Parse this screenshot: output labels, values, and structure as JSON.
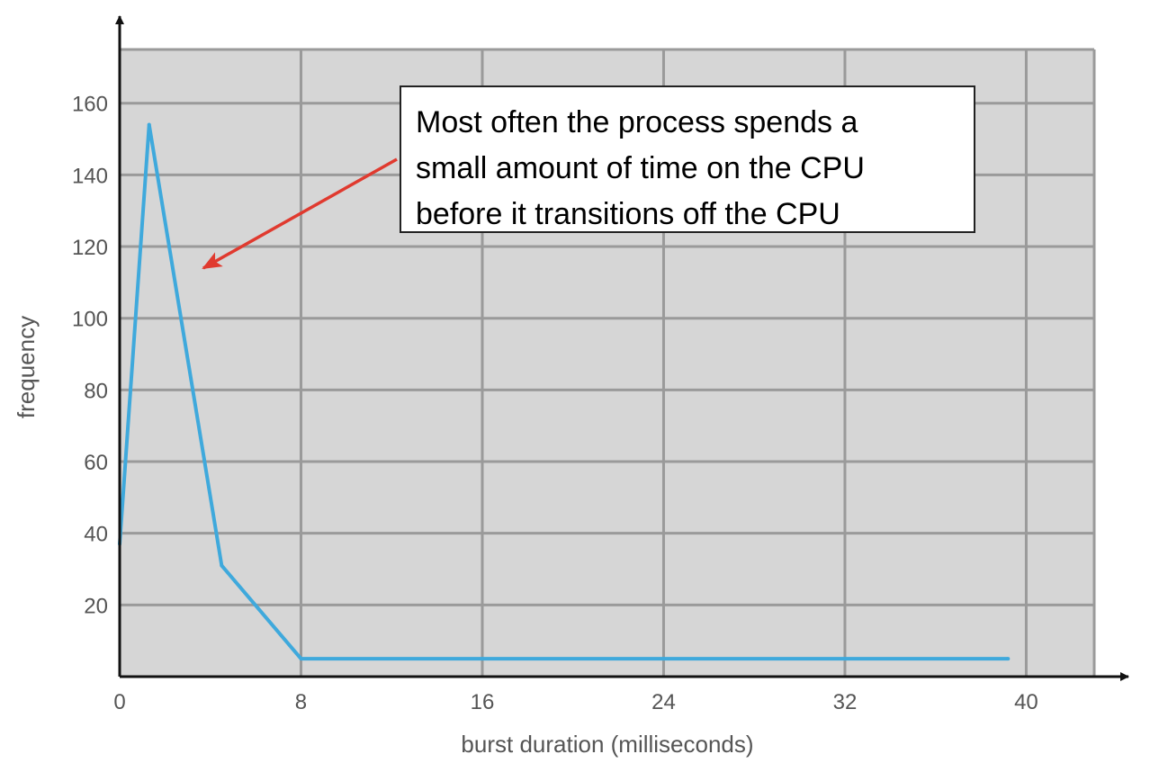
{
  "chart_data": {
    "type": "line",
    "title": "",
    "xlabel": "burst duration (milliseconds)",
    "ylabel": "frequency",
    "xlim": [
      0,
      43
    ],
    "ylim": [
      0,
      175
    ],
    "x_ticks": [
      0,
      8,
      16,
      24,
      32,
      40
    ],
    "y_ticks": [
      20,
      40,
      60,
      80,
      100,
      120,
      140,
      160
    ],
    "grid": true,
    "series": [
      {
        "color": "#3fa9dc",
        "points": [
          [
            0,
            37
          ],
          [
            1.3,
            154
          ],
          [
            4.5,
            31
          ],
          [
            8,
            5
          ],
          [
            16,
            5
          ],
          [
            24,
            5
          ],
          [
            32,
            5
          ],
          [
            39.2,
            5
          ]
        ]
      }
    ],
    "annotation": {
      "lines": [
        "Most often the process spends a",
        "small amount of time on the CPU",
        "before it transitions off the CPU"
      ],
      "arrow_color": "#e03a2f"
    }
  },
  "colors": {
    "plot_background": "#d6d6d6",
    "grid": "#9a9a9a",
    "axis": "#111111"
  }
}
